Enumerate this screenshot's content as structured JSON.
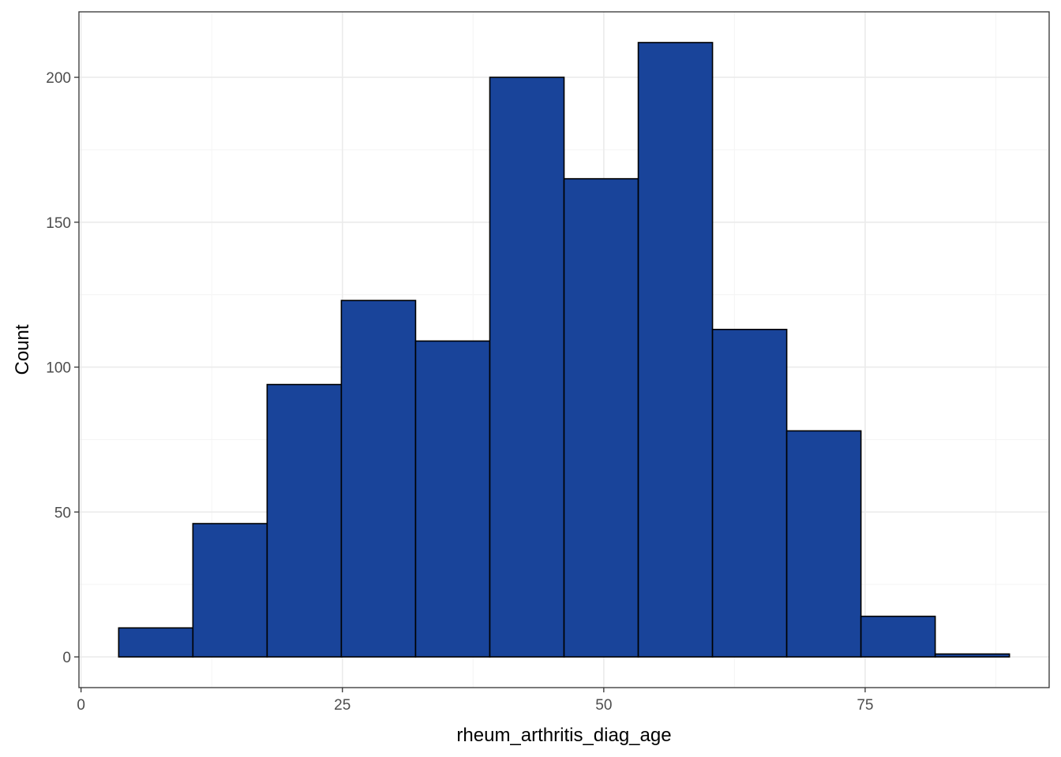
{
  "chart_data": {
    "type": "bar",
    "subtype": "histogram",
    "xlabel": "rheum_arthritis_diag_age",
    "ylabel": "Count",
    "bin_width": 7.1,
    "bins": [
      {
        "x0": 3.6,
        "x1": 10.7,
        "count": 10
      },
      {
        "x0": 10.7,
        "x1": 17.8,
        "count": 46
      },
      {
        "x0": 17.8,
        "x1": 24.9,
        "count": 94
      },
      {
        "x0": 24.9,
        "x1": 32.0,
        "count": 123
      },
      {
        "x0": 32.0,
        "x1": 39.1,
        "count": 109
      },
      {
        "x0": 39.1,
        "x1": 46.2,
        "count": 200
      },
      {
        "x0": 46.2,
        "x1": 53.3,
        "count": 165
      },
      {
        "x0": 53.3,
        "x1": 60.4,
        "count": 212
      },
      {
        "x0": 60.4,
        "x1": 67.5,
        "count": 113
      },
      {
        "x0": 67.5,
        "x1": 74.6,
        "count": 78
      },
      {
        "x0": 74.6,
        "x1": 81.7,
        "count": 14
      },
      {
        "x0": 81.7,
        "x1": 88.8,
        "count": 1
      }
    ],
    "xlim": [
      -0.2,
      92.6
    ],
    "ylim": [
      -10.6,
      222.6
    ],
    "x_ticks": [
      0,
      25,
      50,
      75
    ],
    "x_tick_labels": [
      "0",
      "25",
      "50",
      "75"
    ],
    "y_ticks": [
      0,
      50,
      100,
      150,
      200
    ],
    "y_tick_labels": [
      "0",
      "50",
      "100",
      "150",
      "200"
    ],
    "grid": true,
    "legend": "none",
    "colors": {
      "bar_fill": "#19449a",
      "bar_stroke": "#000000",
      "grid_major": "#ebebeb",
      "grid_minor": "#f5f5f5",
      "panel_border": "#333333",
      "tick_text": "#4d4d4d",
      "title_text": "#000000"
    }
  }
}
